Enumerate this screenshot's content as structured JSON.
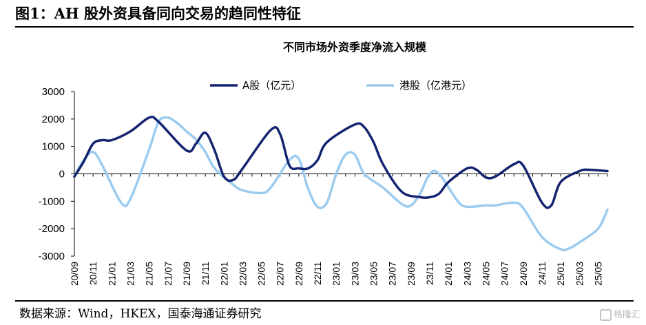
{
  "figure": {
    "title": "图1：AH 股外资具备同向交易的趋同性特征",
    "source": "数据来源：Wind，HKEX，国泰海通证券研究",
    "watermark": "格隆汇"
  },
  "colors": {
    "series_a": "#152470",
    "series_h": "#9ccbf0",
    "axis": "#000000"
  },
  "chart_data": {
    "type": "line",
    "title": "不同市场外资季度净流入规模",
    "xlabel": "",
    "ylabel": "",
    "ylim": [
      -3000,
      3000
    ],
    "yticks": [
      3000,
      2000,
      1000,
      0,
      -1000,
      -2000,
      -3000
    ],
    "grid": false,
    "legend_position": "top",
    "x": [
      "20/09",
      "20/10",
      "20/11",
      "20/12",
      "21/01",
      "21/02",
      "21/03",
      "21/04",
      "21/05",
      "21/06",
      "21/07",
      "21/08",
      "21/09",
      "21/10",
      "21/11",
      "21/12",
      "22/01",
      "22/02",
      "22/03",
      "22/04",
      "22/05",
      "22/06",
      "22/07",
      "22/08",
      "22/09",
      "22/10",
      "22/11",
      "22/12",
      "23/01",
      "23/02",
      "23/03",
      "23/04",
      "23/05",
      "23/06",
      "23/07",
      "23/08",
      "23/09",
      "23/10",
      "23/11",
      "23/12",
      "24/01",
      "24/02",
      "24/03",
      "24/04",
      "24/05",
      "24/06",
      "24/07",
      "24/08",
      "24/09",
      "24/10",
      "24/11",
      "24/12",
      "25/01",
      "25/02",
      "25/03",
      "25/04",
      "25/05",
      "25/06"
    ],
    "xtick_labels": [
      "20/09",
      "20/11",
      "21/01",
      "21/03",
      "21/05",
      "21/07",
      "21/09",
      "21/11",
      "22/01",
      "22/03",
      "22/05",
      "22/07",
      "22/09",
      "22/11",
      "23/01",
      "23/03",
      "23/05",
      "23/07",
      "23/09",
      "23/11",
      "24/01",
      "24/03",
      "24/05",
      "24/07",
      "24/09",
      "24/11",
      "25/01",
      "25/03",
      "25/05"
    ],
    "series": [
      {
        "name": "A股（亿元）",
        "values": [
          -100,
          450,
          1100,
          1230,
          1230,
          1550,
          2050,
          1900,
          850,
          1100,
          1500,
          850,
          -100,
          -220,
          200,
          1600,
          1450,
          300,
          200,
          200,
          500,
          1150,
          1800,
          1700,
          1150,
          350,
          -650,
          -850,
          -850,
          -720,
          -300,
          200,
          150,
          -130,
          -100,
          350,
          300,
          -1050,
          -1150,
          -300,
          100,
          150,
          100
        ],
        "x": [
          "20/09",
          "20/10",
          "20/11",
          "20/12",
          "21/01",
          "21/03",
          "21/05",
          "21/06",
          "21/09",
          "21/10",
          "21/11",
          "21/12",
          "22/01",
          "22/02",
          "22/03",
          "22/06",
          "22/07",
          "22/08",
          "22/09",
          "22/10",
          "22/11",
          "22/12",
          "23/03",
          "23/04",
          "23/05",
          "23/06",
          "23/08",
          "23/10",
          "23/11",
          "23/12",
          "24/01",
          "24/03",
          "24/04",
          "24/05",
          "24/06",
          "24/08",
          "24/09",
          "24/11",
          "24/12",
          "25/01",
          "25/03",
          "25/04",
          "25/06"
        ]
      },
      {
        "name": "港股（亿港元）",
        "values": [
          -100,
          500,
          800,
          300,
          -1050,
          -900,
          900,
          1900,
          2050,
          1850,
          1550,
          1250,
          800,
          200,
          -400,
          -600,
          -700,
          -500,
          500,
          550,
          -550,
          -1200,
          -1050,
          0,
          700,
          700,
          0,
          -500,
          -1100,
          -1150,
          -700,
          0,
          0,
          -1000,
          -1200,
          -1150,
          -1150,
          -1050,
          -1250,
          -2300,
          -2750,
          -2700,
          -2500,
          -2000,
          -1300
        ],
        "x": [
          "20/09",
          "20/10",
          "20/11",
          "20/12",
          "21/02",
          "21/03",
          "21/05",
          "21/06",
          "21/07",
          "21/08",
          "21/09",
          "21/10",
          "21/11",
          "21/12",
          "22/02",
          "22/03",
          "22/05",
          "22/06",
          "22/08",
          "22/09",
          "22/10",
          "22/11",
          "22/12",
          "23/01",
          "23/02",
          "23/03",
          "23/04",
          "23/06",
          "23/08",
          "23/09",
          "23/10",
          "23/11",
          "23/12",
          "24/02",
          "24/03",
          "24/05",
          "24/06",
          "24/08",
          "24/09",
          "24/11",
          "25/01",
          "25/02",
          "25/03",
          "25/05",
          "25/06"
        ]
      }
    ]
  }
}
